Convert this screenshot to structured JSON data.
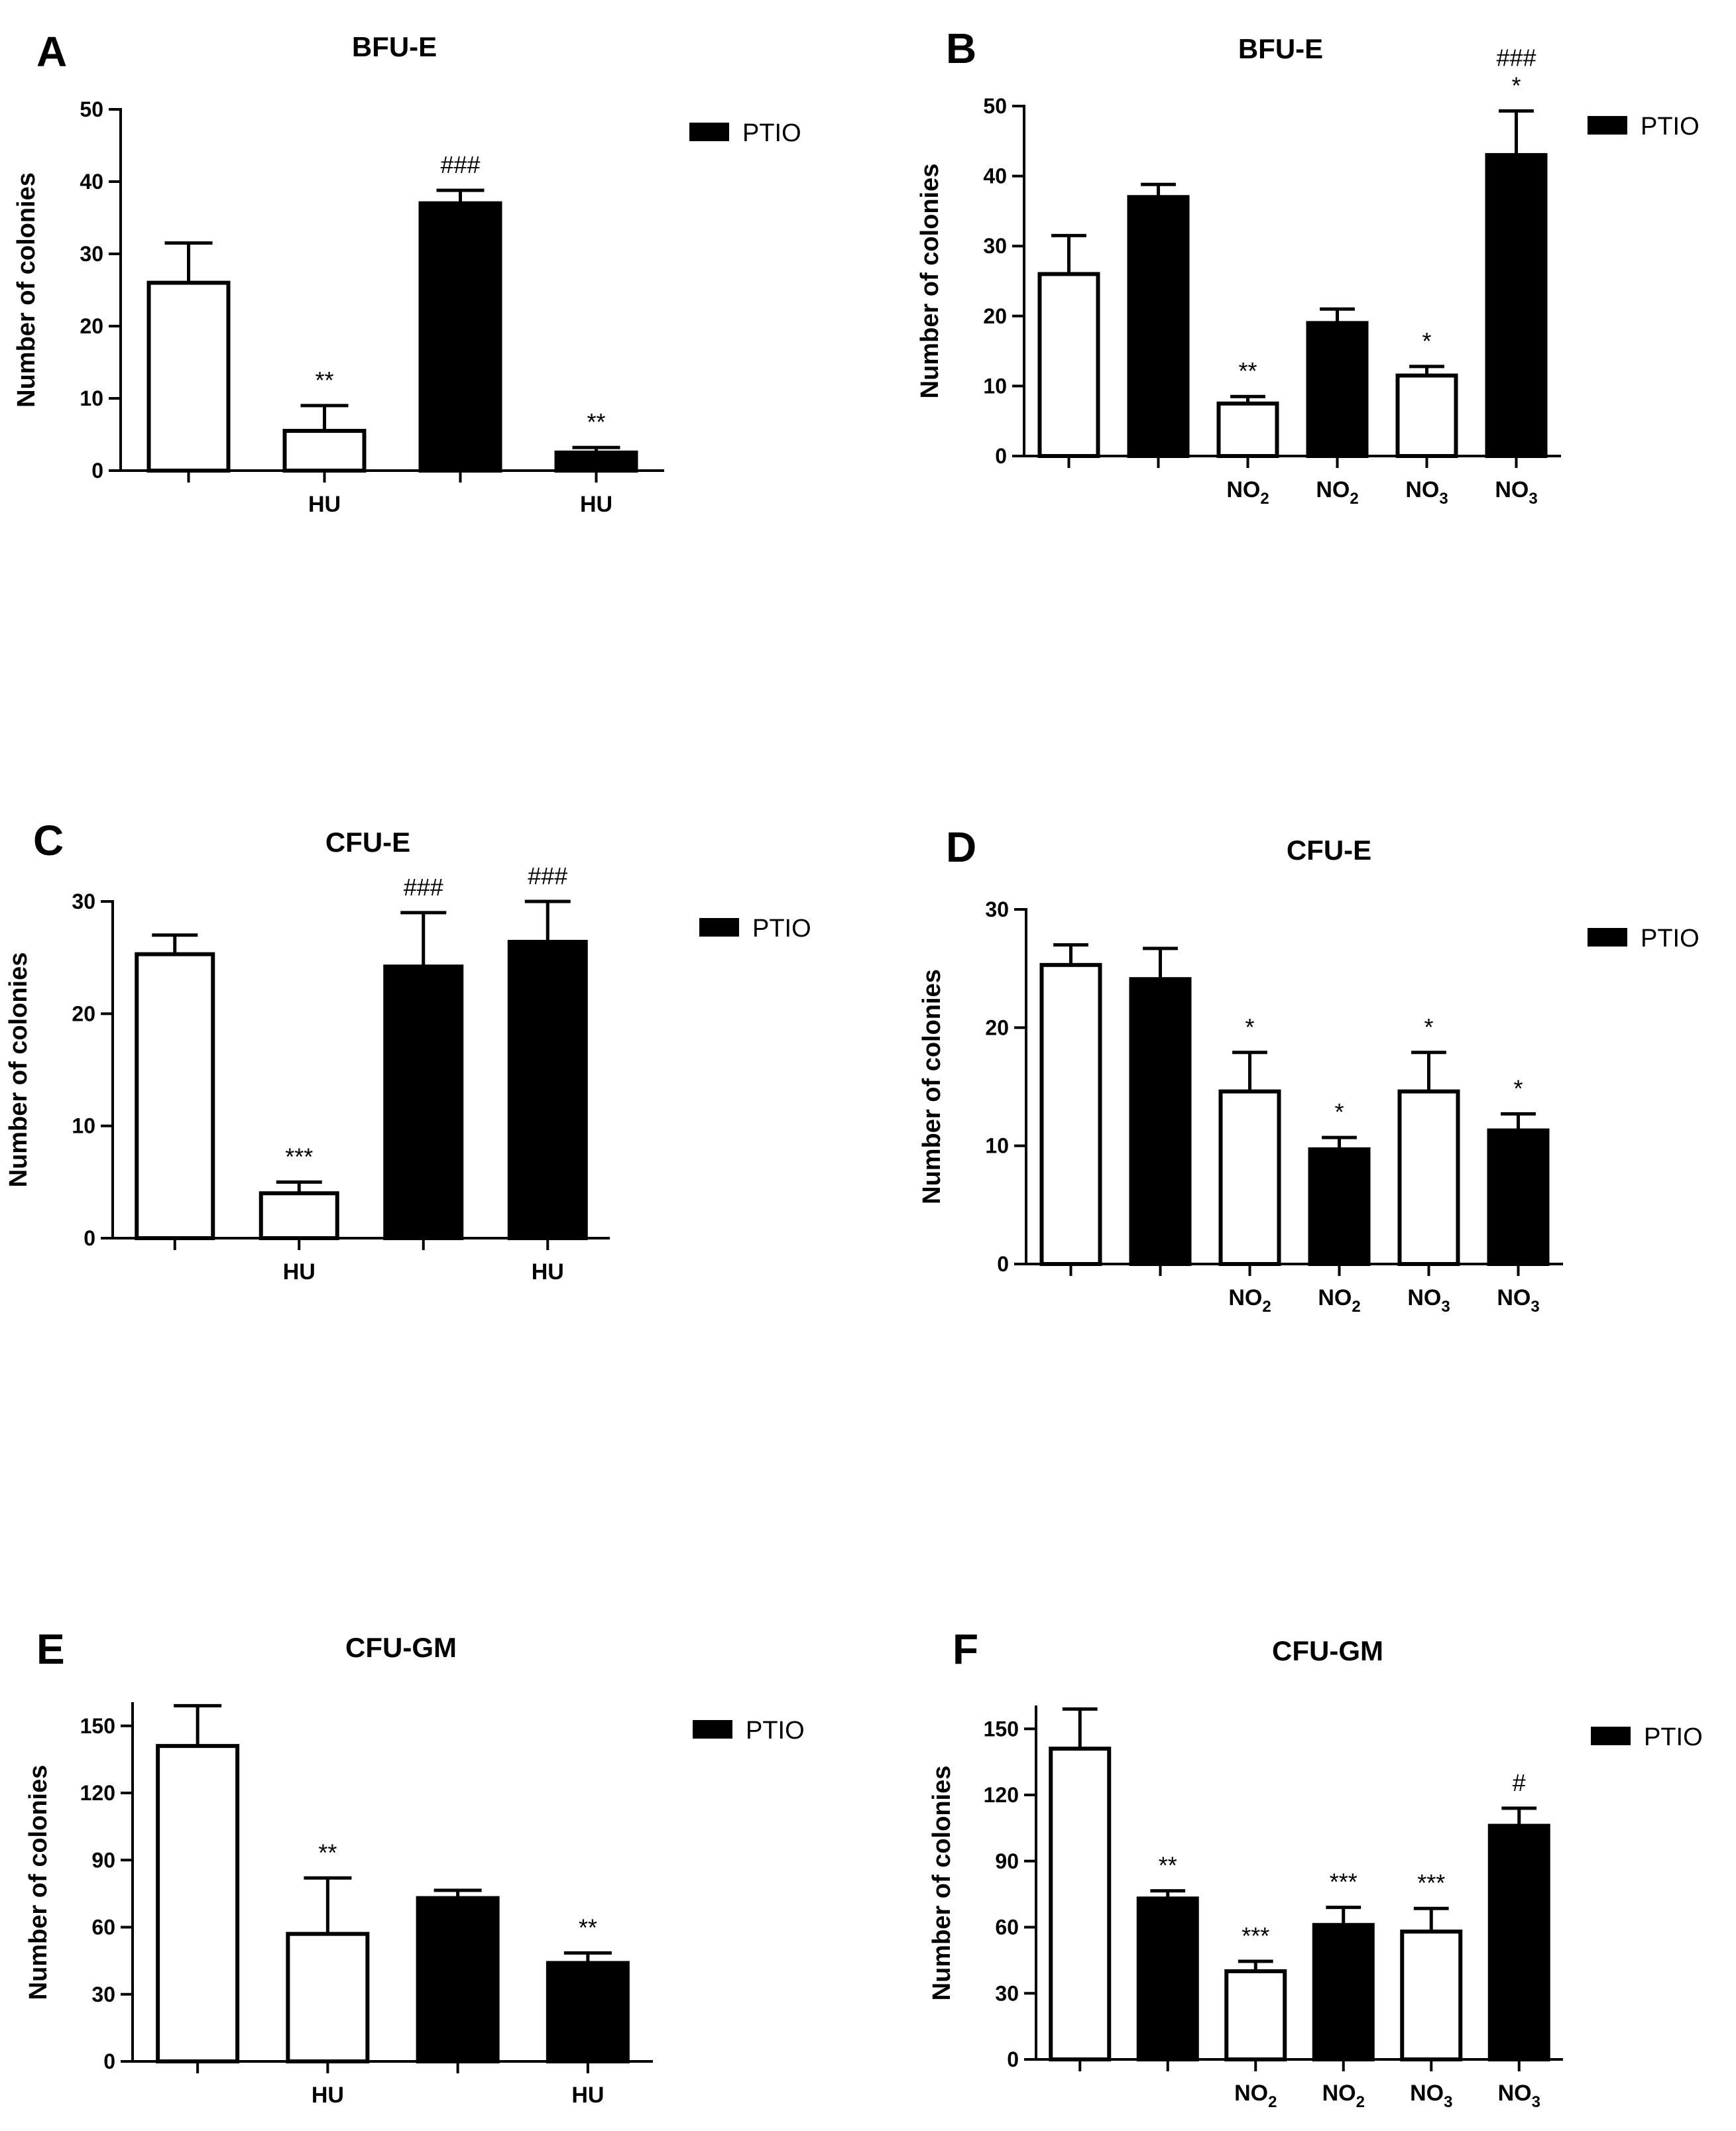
{
  "chart_data": [
    {
      "panel": "A",
      "type": "bar",
      "title": "BFU-E",
      "ylabel": "Number of colonies",
      "ylim": [
        0,
        50
      ],
      "yticks": [
        0,
        10,
        20,
        30,
        40,
        50
      ],
      "legend": "PTIO",
      "categories": [
        "",
        "HU",
        "",
        "HU"
      ],
      "cat_subscripts": [
        "",
        "",
        "",
        ""
      ],
      "values": [
        26,
        5.5,
        37,
        2.5
      ],
      "errors": [
        5.5,
        3.5,
        1.8,
        0.7
      ],
      "fills": [
        "white",
        "white",
        "black",
        "black"
      ],
      "annotations": [
        "",
        "**",
        "###",
        "**"
      ]
    },
    {
      "panel": "B",
      "type": "bar",
      "title": "BFU-E",
      "ylabel": "Number of colonies",
      "ylim": [
        0,
        50
      ],
      "yticks": [
        0,
        10,
        20,
        30,
        40,
        50
      ],
      "legend": "PTIO",
      "categories": [
        "",
        "",
        "NO",
        "NO",
        "NO",
        "NO"
      ],
      "cat_subscripts": [
        "",
        "",
        "2",
        "2",
        "3",
        "3"
      ],
      "values": [
        26,
        37,
        7.5,
        19,
        11.5,
        43
      ],
      "errors": [
        5.5,
        1.8,
        1.0,
        2.0,
        1.3,
        6.3
      ],
      "fills": [
        "white",
        "black",
        "white",
        "black",
        "white",
        "black"
      ],
      "annotations": [
        "",
        "",
        "**",
        "",
        "*",
        "*|###"
      ]
    },
    {
      "panel": "C",
      "type": "bar",
      "title": "CFU-E",
      "ylabel": "Number of colonies",
      "ylim": [
        0,
        30
      ],
      "yticks": [
        0,
        10,
        20,
        30
      ],
      "legend": "PTIO",
      "categories": [
        "",
        "HU",
        "",
        "HU"
      ],
      "cat_subscripts": [
        "",
        "",
        "",
        ""
      ],
      "values": [
        25.3,
        4,
        24.2,
        26.4
      ],
      "errors": [
        1.7,
        1.0,
        4.8,
        3.6
      ],
      "fills": [
        "white",
        "white",
        "black",
        "black"
      ],
      "annotations": [
        "",
        "***",
        "###",
        "###"
      ]
    },
    {
      "panel": "D",
      "type": "bar",
      "title": "CFU-E",
      "ylabel": "Number of colonies",
      "ylim": [
        0,
        30
      ],
      "yticks": [
        0,
        10,
        20,
        30
      ],
      "legend": "PTIO",
      "categories": [
        "",
        "",
        "NO",
        "NO",
        "NO",
        "NO"
      ],
      "cat_subscripts": [
        "",
        "",
        "2",
        "2",
        "3",
        "3"
      ],
      "values": [
        25.3,
        24.1,
        14.6,
        9.7,
        14.6,
        11.3
      ],
      "errors": [
        1.7,
        2.6,
        3.3,
        1.0,
        3.3,
        1.4
      ],
      "fills": [
        "white",
        "black",
        "white",
        "black",
        "white",
        "black"
      ],
      "annotations": [
        "",
        "",
        "*",
        "*",
        "*",
        "*"
      ]
    },
    {
      "panel": "E",
      "type": "bar",
      "title": "CFU-GM",
      "ylabel": "Number of colonies",
      "ylim": [
        0,
        160
      ],
      "yticks": [
        0,
        30,
        60,
        90,
        120,
        150
      ],
      "legend": "PTIO",
      "categories": [
        "",
        "HU",
        "",
        "HU"
      ],
      "cat_subscripts": [
        "",
        "",
        "",
        ""
      ],
      "values": [
        141,
        57,
        73,
        44
      ],
      "errors": [
        18,
        25,
        3.5,
        4.5
      ],
      "fills": [
        "white",
        "white",
        "black",
        "black"
      ],
      "annotations": [
        "",
        "**",
        "",
        "**"
      ]
    },
    {
      "panel": "F",
      "type": "bar",
      "title": "CFU-GM",
      "ylabel": "Number of colonies",
      "ylim": [
        0,
        160
      ],
      "yticks": [
        0,
        30,
        60,
        90,
        120,
        150
      ],
      "legend": "PTIO",
      "categories": [
        "",
        "",
        "NO",
        "NO",
        "NO",
        "NO"
      ],
      "cat_subscripts": [
        "",
        "",
        "2",
        "2",
        "3",
        "3"
      ],
      "values": [
        141,
        73,
        40,
        61,
        58,
        106
      ],
      "errors": [
        18,
        3.5,
        4.5,
        8,
        10.5,
        8
      ],
      "fills": [
        "white",
        "black",
        "white",
        "black",
        "white",
        "black"
      ],
      "annotations": [
        "",
        "**",
        "***",
        "***",
        "***",
        "#"
      ]
    }
  ]
}
